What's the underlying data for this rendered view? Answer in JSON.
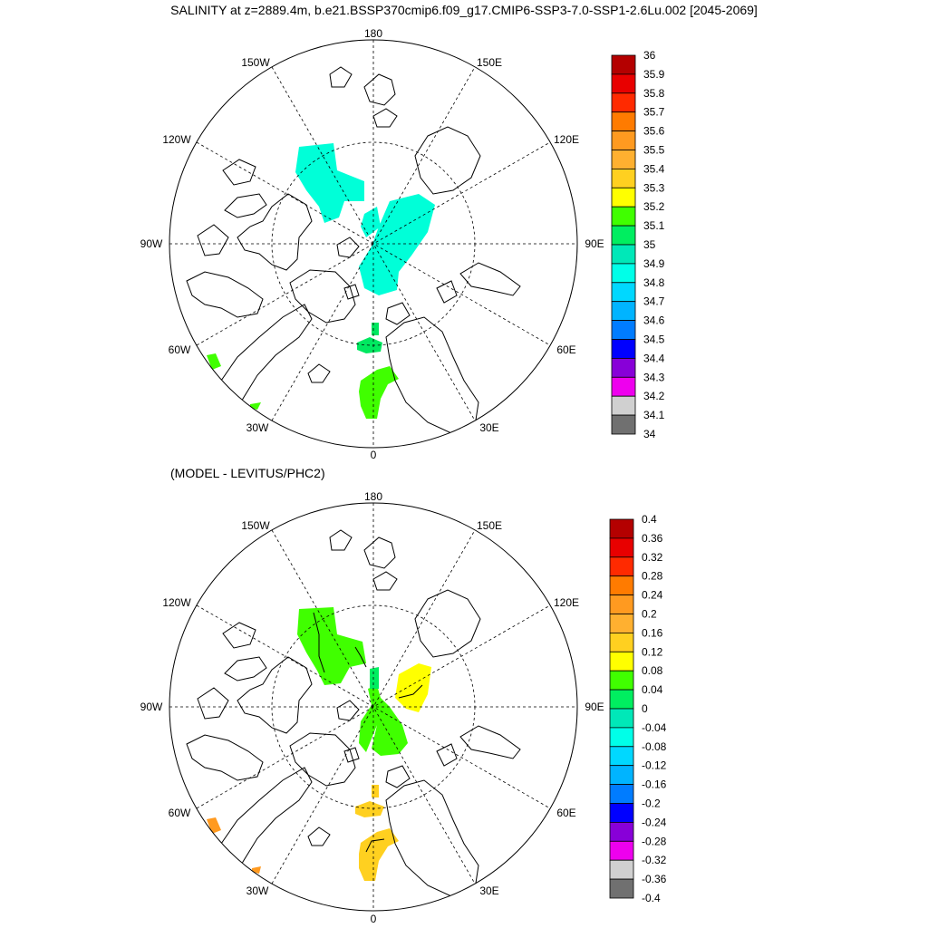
{
  "title": "SALINITY at z=2889.4m, b.e21.BSSP370cmip6.f09_g17.CMIP6-SSP3-7.0-SSP1-2.6Lu.002 [2045-2069]",
  "subtitle": "(MODEL - LEVITUS/PHC2)",
  "lon_labels": [
    "180",
    "150E",
    "120E",
    "90E",
    "60E",
    "30E",
    "0",
    "30W",
    "60W",
    "90W",
    "120W",
    "150W"
  ],
  "top_map": {
    "levels": [
      "36",
      "35.9",
      "35.8",
      "35.7",
      "35.6",
      "35.5",
      "35.4",
      "35.3",
      "35.2",
      "35.1",
      "35",
      "34.9",
      "34.8",
      "34.7",
      "34.6",
      "34.5",
      "34.4",
      "34.3",
      "34.2",
      "34.1",
      "34"
    ],
    "colors": [
      "#b40000",
      "#e80000",
      "#ff2a00",
      "#ff7b00",
      "#ff9a20",
      "#ffb030",
      "#ffd020",
      "#ffff00",
      "#40ff00",
      "#00ee60",
      "#00e8b8",
      "#00ffe8",
      "#00d8ff",
      "#00b4ff",
      "#007cff",
      "#0000ff",
      "#8800d8",
      "#ee00ee",
      "#d0d0d0",
      "#707070"
    ],
    "patch_colors": [
      "#00ffd8",
      "#00ffd8",
      "#00ffd8",
      "#00e860",
      "#00e860",
      "#40ff00",
      "#40ff00"
    ]
  },
  "bottom_map": {
    "levels": [
      "0.4",
      "0.36",
      "0.32",
      "0.28",
      "0.24",
      "0.2",
      "0.16",
      "0.12",
      "0.08",
      "0.04",
      "0",
      "-0.04",
      "-0.08",
      "-0.12",
      "-0.16",
      "-0.2",
      "-0.24",
      "-0.28",
      "-0.32",
      "-0.36",
      "-0.4"
    ],
    "colors": [
      "#b40000",
      "#e80000",
      "#ff2a00",
      "#ff7b00",
      "#ff9a20",
      "#ffb030",
      "#ffd020",
      "#ffff00",
      "#40ff00",
      "#00ee60",
      "#00e8b8",
      "#00ffe8",
      "#00d8ff",
      "#00b4ff",
      "#007cff",
      "#0000ff",
      "#8800d8",
      "#ee00ee",
      "#d0d0d0",
      "#707070"
    ],
    "patch_colors": [
      "#40ff00",
      "#40ff00",
      "#ffff00",
      "#00ee60",
      "#ffd020",
      "#ffd020",
      "#ff9a20",
      "#ff9a20"
    ]
  }
}
